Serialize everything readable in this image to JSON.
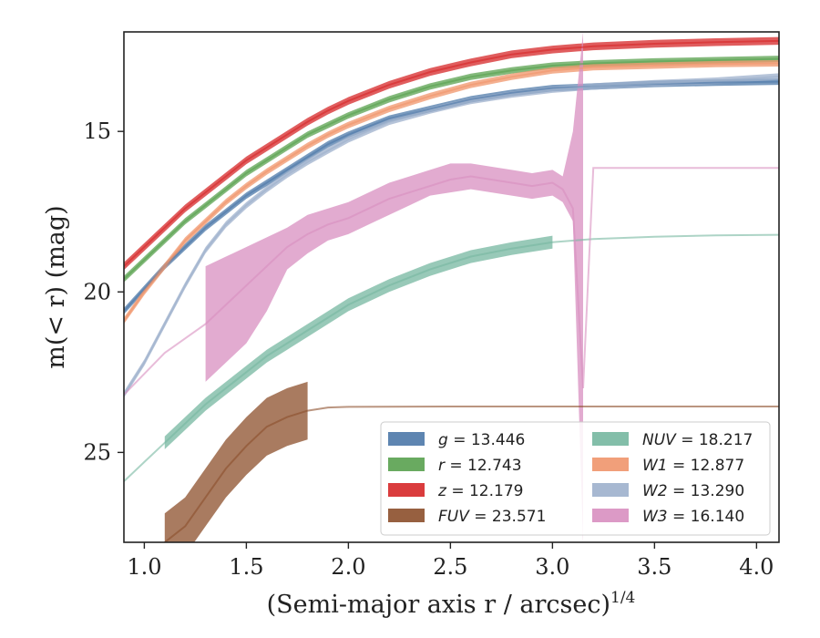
{
  "chart_data": {
    "type": "line",
    "title": "",
    "xlabel": "(Semi-major axis r / arcsec)",
    "xlabel_superscript": "1/4",
    "ylabel": "m(< r) (mag)",
    "xlim": [
      0.9,
      4.11
    ],
    "ylim": [
      27.8,
      11.9
    ],
    "y_inverted": true,
    "grid": false,
    "legend_position": "lower-right",
    "xticks": [
      1.0,
      1.5,
      2.0,
      2.5,
      3.0,
      3.5,
      4.0
    ],
    "xtick_labels": [
      "1.0",
      "1.5",
      "2.0",
      "2.5",
      "3.0",
      "3.5",
      "4.0"
    ],
    "yticks": [
      15,
      20,
      25
    ],
    "ytick_labels": [
      "15",
      "20",
      "25"
    ],
    "series": [
      {
        "name": "g = 13.446",
        "name_var": "g",
        "name_value": "13.446",
        "color": "#4c78a8",
        "x": [
          0.9,
          1.0,
          1.1,
          1.2,
          1.3,
          1.4,
          1.5,
          1.6,
          1.7,
          1.8,
          1.9,
          2.0,
          2.2,
          2.4,
          2.6,
          2.8,
          3.0,
          3.2,
          3.5,
          3.8,
          4.11
        ],
        "y": [
          20.6,
          19.9,
          19.2,
          18.6,
          18.0,
          17.5,
          17.0,
          16.6,
          16.2,
          15.8,
          15.4,
          15.1,
          14.6,
          14.3,
          14.0,
          13.8,
          13.65,
          13.6,
          13.52,
          13.48,
          13.45
        ],
        "band": 0.1
      },
      {
        "name": "r = 12.743",
        "name_var": "r",
        "name_value": "12.743",
        "color": "#59a14f",
        "x": [
          0.9,
          1.0,
          1.1,
          1.2,
          1.3,
          1.4,
          1.5,
          1.6,
          1.7,
          1.8,
          1.9,
          2.0,
          2.2,
          2.4,
          2.6,
          2.8,
          3.0,
          3.2,
          3.5,
          3.8,
          4.11
        ],
        "y": [
          19.6,
          19.0,
          18.4,
          17.8,
          17.3,
          16.8,
          16.3,
          15.9,
          15.5,
          15.1,
          14.8,
          14.5,
          14.0,
          13.6,
          13.3,
          13.1,
          12.95,
          12.88,
          12.82,
          12.78,
          12.74
        ],
        "band": 0.1
      },
      {
        "name": "z = 12.179",
        "name_var": "z",
        "name_value": "12.179",
        "color": "#d62728",
        "x": [
          0.9,
          1.0,
          1.1,
          1.2,
          1.3,
          1.4,
          1.5,
          1.6,
          1.7,
          1.8,
          1.9,
          2.0,
          2.2,
          2.4,
          2.6,
          2.8,
          3.0,
          3.2,
          3.5,
          3.8,
          4.11
        ],
        "y": [
          19.2,
          18.6,
          18.0,
          17.4,
          16.9,
          16.4,
          15.9,
          15.5,
          15.1,
          14.7,
          14.35,
          14.05,
          13.55,
          13.15,
          12.85,
          12.6,
          12.45,
          12.35,
          12.27,
          12.22,
          12.18
        ],
        "band": 0.12
      },
      {
        "name": "FUV = 23.571",
        "name_var": "FUV",
        "name_value": "23.571",
        "color": "#8c4f2b",
        "x": [
          1.1,
          1.2,
          1.3,
          1.4,
          1.5,
          1.6,
          1.7,
          1.8,
          1.9,
          2.0,
          2.5,
          3.0,
          3.5,
          4.11
        ],
        "y": [
          27.8,
          27.3,
          26.4,
          25.5,
          24.8,
          24.2,
          23.9,
          23.7,
          23.6,
          23.58,
          23.57,
          23.57,
          23.57,
          23.57
        ],
        "band": 0.9,
        "band_xmax": 1.8
      },
      {
        "name": "NUV = 18.217",
        "name_var": "NUV",
        "name_value": "18.217",
        "color": "#76b7a0",
        "x": [
          0.9,
          1.0,
          1.1,
          1.2,
          1.3,
          1.4,
          1.5,
          1.6,
          1.7,
          1.8,
          1.9,
          2.0,
          2.2,
          2.4,
          2.6,
          2.8,
          3.0,
          3.2,
          3.5,
          3.8,
          4.11
        ],
        "y": [
          25.9,
          25.3,
          24.7,
          24.1,
          23.5,
          23.0,
          22.5,
          22.0,
          21.6,
          21.2,
          20.8,
          20.4,
          19.8,
          19.3,
          18.9,
          18.65,
          18.45,
          18.35,
          18.28,
          18.24,
          18.22
        ],
        "band": 0.2,
        "band_xmin": 1.1,
        "band_xmax": 3.1
      },
      {
        "name": "W1 = 12.877",
        "name_var": "W1",
        "name_value": "12.877",
        "color": "#f0956b",
        "x": [
          0.9,
          1.0,
          1.1,
          1.2,
          1.3,
          1.4,
          1.5,
          1.6,
          1.7,
          1.8,
          1.9,
          2.0,
          2.2,
          2.4,
          2.6,
          2.8,
          3.0,
          3.2,
          3.5,
          3.8,
          4.11
        ],
        "y": [
          20.9,
          20.0,
          19.2,
          18.4,
          17.8,
          17.2,
          16.7,
          16.25,
          15.85,
          15.45,
          15.1,
          14.8,
          14.3,
          13.9,
          13.55,
          13.3,
          13.1,
          13.0,
          12.95,
          12.9,
          12.88
        ],
        "band": 0.1
      },
      {
        "name": "W2 = 13.290",
        "name_var": "W2",
        "name_value": "13.290",
        "color": "#9db0cc",
        "x": [
          0.9,
          1.0,
          1.1,
          1.2,
          1.3,
          1.4,
          1.5,
          1.6,
          1.7,
          1.8,
          1.9,
          2.0,
          2.2,
          2.4,
          2.6,
          2.8,
          3.0,
          3.2,
          3.5,
          3.8,
          4.11
        ],
        "y": [
          23.2,
          22.2,
          21.0,
          19.8,
          18.7,
          17.9,
          17.3,
          16.8,
          16.35,
          15.95,
          15.6,
          15.25,
          14.7,
          14.35,
          14.05,
          13.85,
          13.7,
          13.6,
          13.5,
          13.42,
          13.29
        ],
        "band": 0.1
      },
      {
        "name": "W3 = 16.140",
        "name_var": "W3",
        "name_value": "16.140",
        "color": "#d88fc0",
        "x": [
          0.9,
          1.1,
          1.3,
          1.4,
          1.5,
          1.6,
          1.7,
          1.8,
          1.9,
          2.0,
          2.1,
          2.2,
          2.3,
          2.4,
          2.5,
          2.6,
          2.7,
          2.8,
          2.9,
          3.0,
          3.05,
          3.1,
          3.15,
          3.2,
          3.5,
          3.8,
          4.11
        ],
        "y": [
          23.2,
          21.9,
          21.0,
          20.4,
          19.8,
          19.2,
          18.6,
          18.2,
          17.9,
          17.7,
          17.4,
          17.1,
          16.9,
          16.7,
          16.5,
          16.4,
          16.5,
          16.6,
          16.7,
          16.6,
          16.8,
          17.4,
          23.0,
          16.14,
          16.14,
          16.14,
          16.14
        ],
        "band_lower": [
          23.2,
          21.9,
          22.8,
          22.2,
          21.6,
          20.6,
          19.3,
          18.8,
          18.4,
          18.2,
          17.9,
          17.6,
          17.3,
          17.0,
          16.9,
          16.8,
          16.9,
          17.0,
          17.1,
          17.0,
          17.2,
          17.8,
          27.8,
          16.14,
          16.14,
          16.14,
          16.14
        ],
        "band_upper": [
          23.2,
          21.9,
          19.2,
          18.9,
          18.6,
          18.3,
          18.0,
          17.6,
          17.4,
          17.2,
          16.9,
          16.6,
          16.4,
          16.2,
          16.0,
          16.0,
          16.1,
          16.2,
          16.3,
          16.2,
          16.4,
          15.0,
          11.9,
          16.14,
          16.14,
          16.14,
          16.14
        ],
        "band_xmin": 1.3,
        "band_xmax": 3.17
      }
    ]
  }
}
